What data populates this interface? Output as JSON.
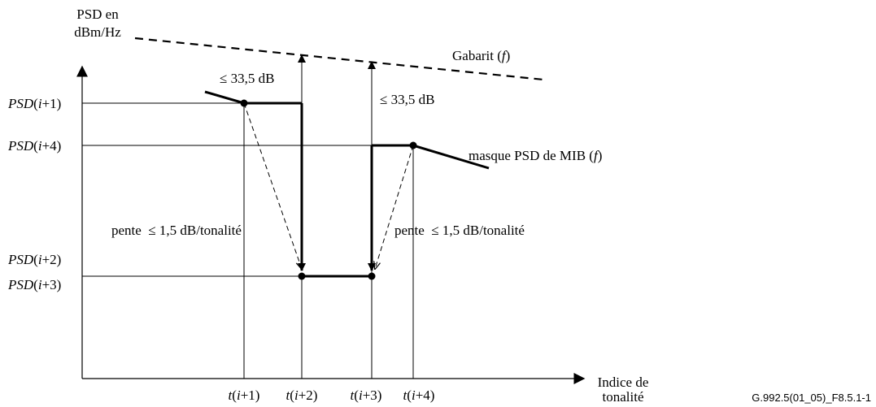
{
  "axes": {
    "y_title_line1": "PSD en",
    "y_title_line2": "dBm/Hz",
    "x_title_line1": "Indice de",
    "x_title_line2": "tonalité"
  },
  "y_ticks": [
    {
      "name": "PSD",
      "idx": "i",
      "op": "+1"
    },
    {
      "name": "PSD",
      "idx": "i",
      "op": "+4"
    },
    {
      "name": "PSD",
      "idx": "i",
      "op": "+2"
    },
    {
      "name": "PSD",
      "idx": "i",
      "op": "+3"
    }
  ],
  "x_ticks": [
    {
      "name": "t",
      "idx": "i",
      "op": "+1"
    },
    {
      "name": "t",
      "idx": "i",
      "op": "+2"
    },
    {
      "name": "t",
      "idx": "i",
      "op": "+3"
    },
    {
      "name": "t",
      "idx": "i",
      "op": "+4"
    }
  ],
  "annotations": {
    "gabarit_prefix": "Gabarit (",
    "gabarit_var": "f",
    "gabarit_suffix": ")",
    "delta_left": "≤ 33,5 dB",
    "delta_right": "≤ 33,5 dB",
    "mask_prefix": "masque PSD de MIB (",
    "mask_var": "f",
    "mask_suffix": ")",
    "slope_left": "pente  ≤ 1,5 dB/tonalité",
    "slope_right": "pente  ≤ 1,5 dB/tonalité"
  },
  "figure_id": "G.992.5(01_05)_F8.5.1-1",
  "colors": {
    "ink": "#000000",
    "background": "#ffffff"
  }
}
